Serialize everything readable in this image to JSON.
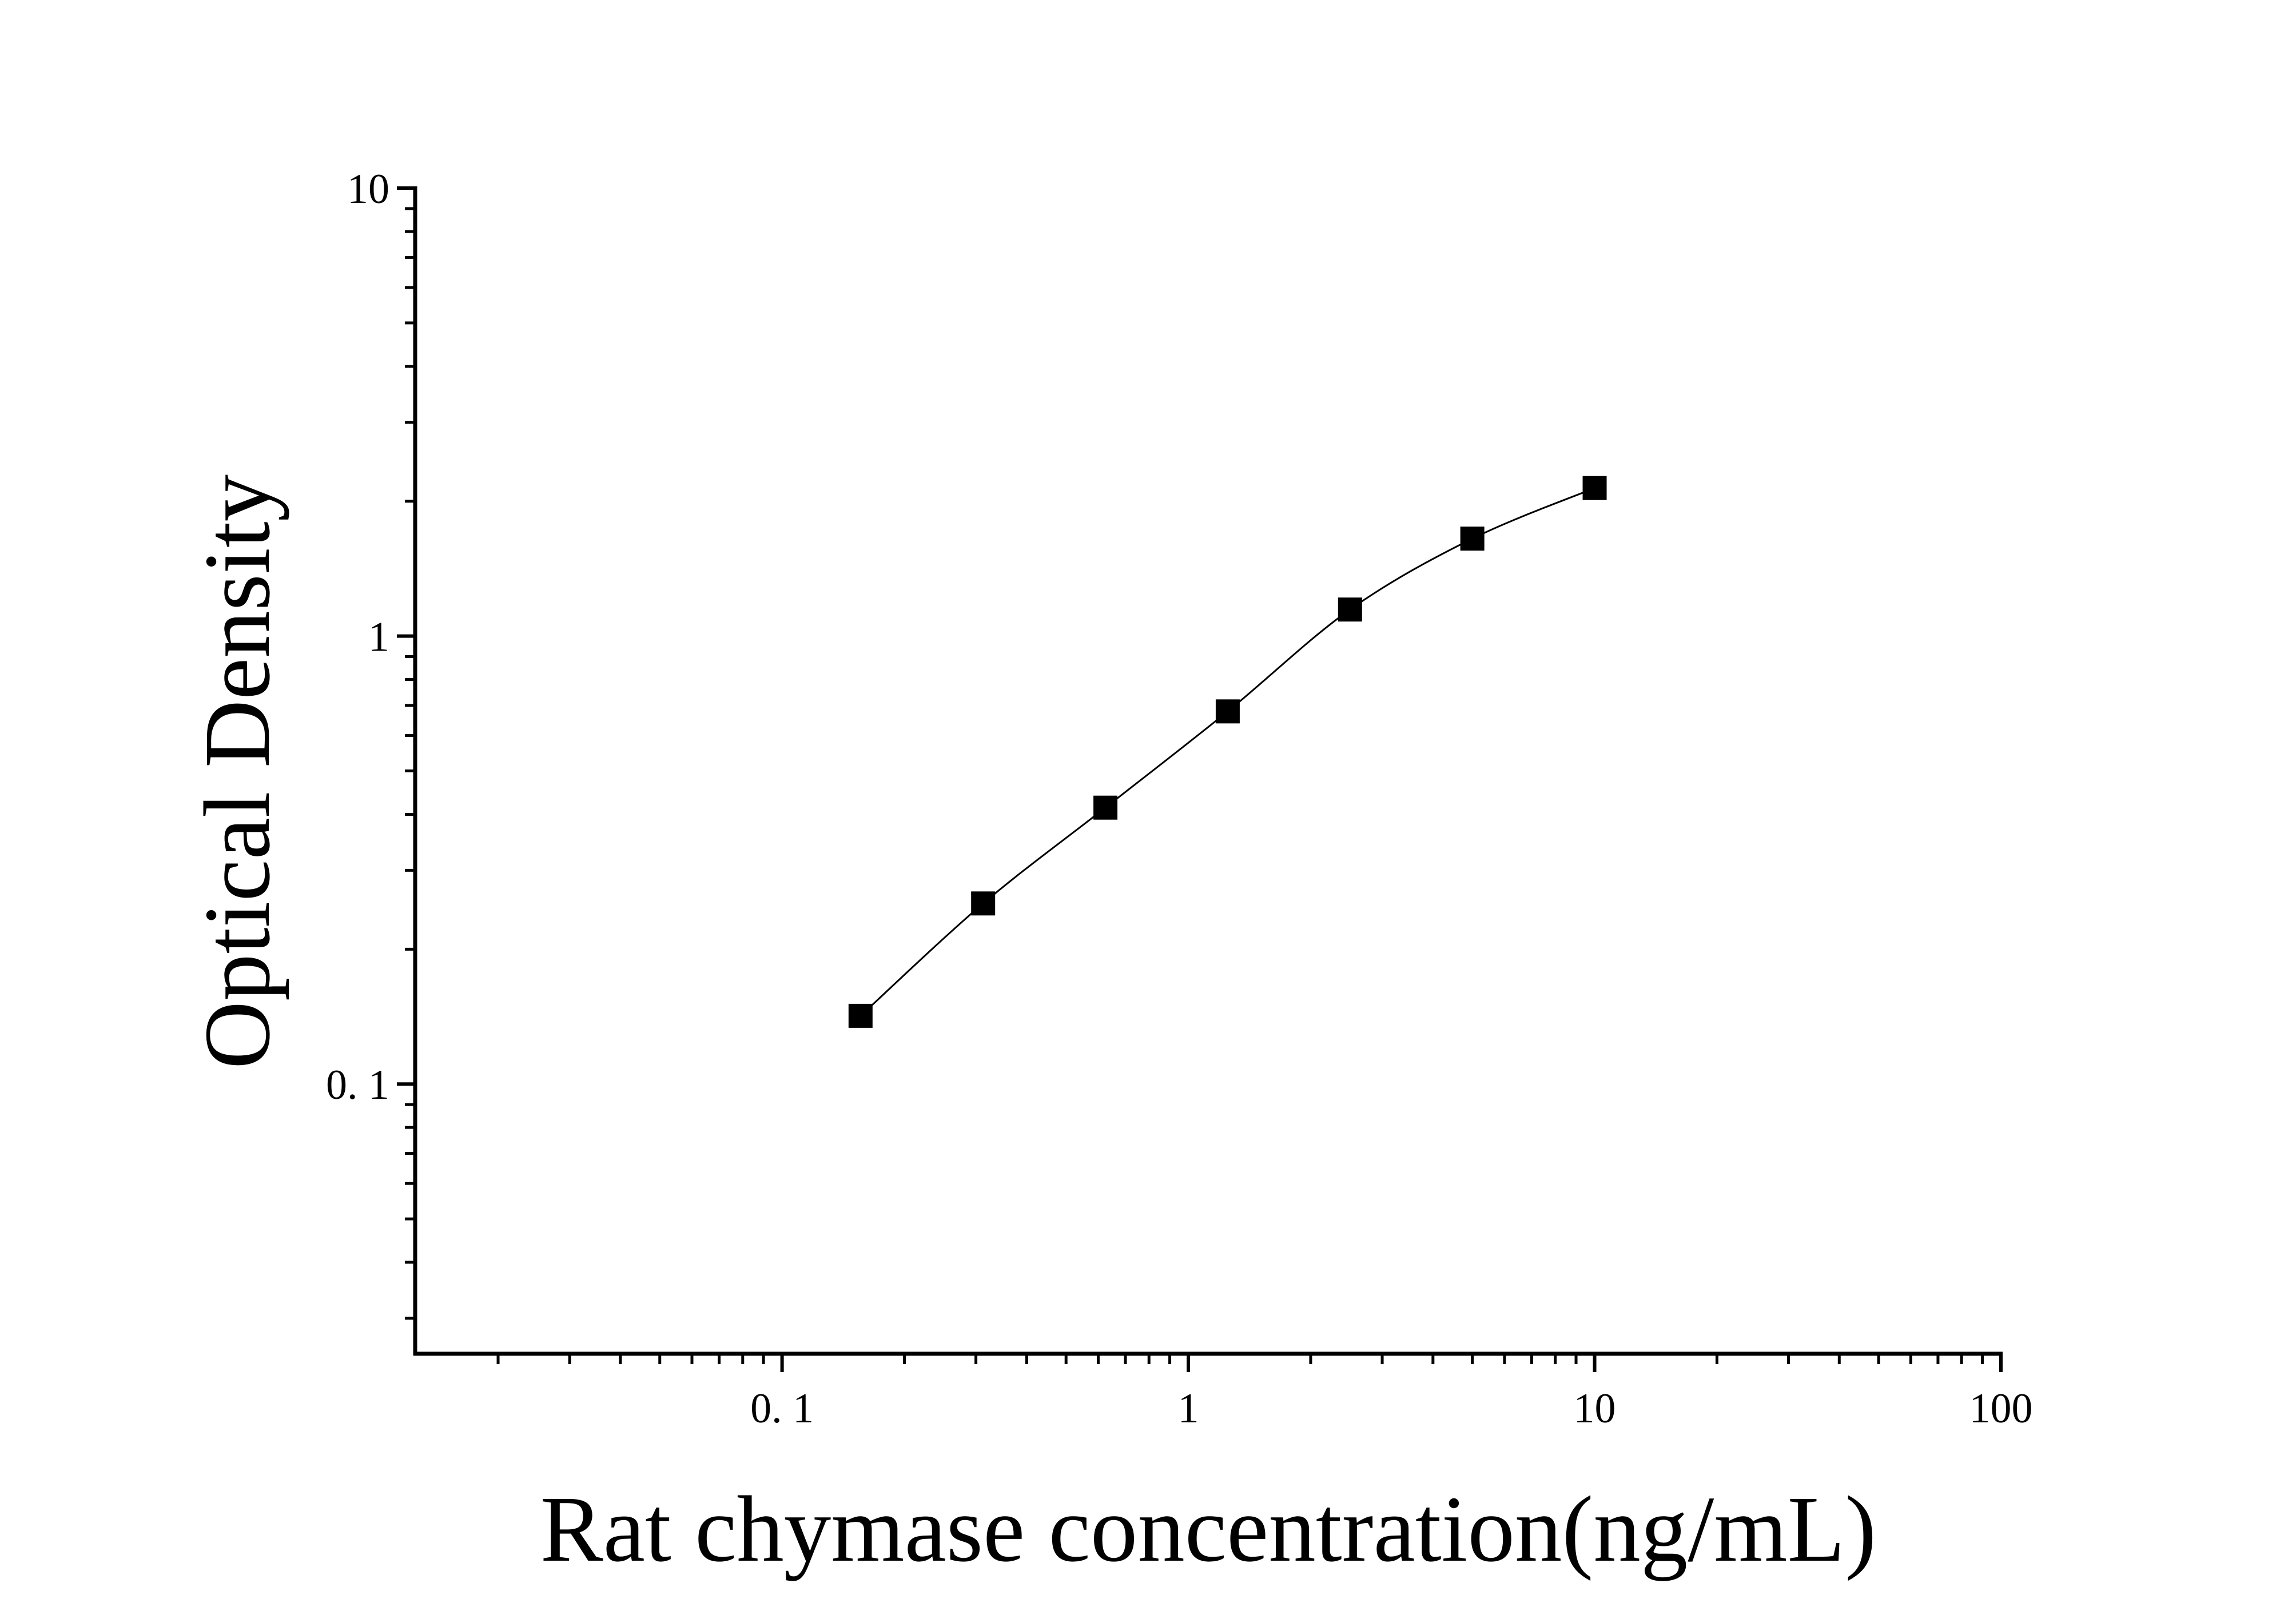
{
  "chart_data": {
    "type": "scatter",
    "x_label": "Rat chymase concentration(ng/mL)",
    "y_label": "Optical Density",
    "x_log": true,
    "y_log": true,
    "xlim": [
      0.0125,
      100
    ],
    "ylim": [
      0.025,
      10
    ],
    "xticks": [
      {
        "value": 0.1,
        "label": "0. 1"
      },
      1,
      10,
      100
    ],
    "yticks": [
      {
        "value": 0.1,
        "label": "0. 1"
      },
      1,
      10
    ],
    "xminor_ticks": [
      0.02,
      0.03,
      0.04,
      0.05,
      0.06,
      0.07,
      0.08,
      0.09,
      0.2,
      0.3,
      0.4,
      0.5,
      0.6,
      0.7,
      0.8,
      0.9,
      2,
      3,
      4,
      5,
      6,
      7,
      8,
      9,
      20,
      30,
      40,
      50,
      60,
      70,
      80,
      90
    ],
    "yminor_ticks": [
      0.03,
      0.04,
      0.05,
      0.06,
      0.07,
      0.08,
      0.09,
      0.2,
      0.3,
      0.4,
      0.5,
      0.6,
      0.7,
      0.8,
      0.9,
      2,
      3,
      4,
      5,
      6,
      7,
      8,
      9
    ],
    "color": "#000000",
    "fit_curve": true,
    "x": [
      0.156,
      0.3125,
      0.625,
      1.25,
      2.5,
      5,
      10
    ],
    "values": [
      0.142,
      0.253,
      0.414,
      0.679,
      1.146,
      1.65,
      2.14
    ]
  }
}
